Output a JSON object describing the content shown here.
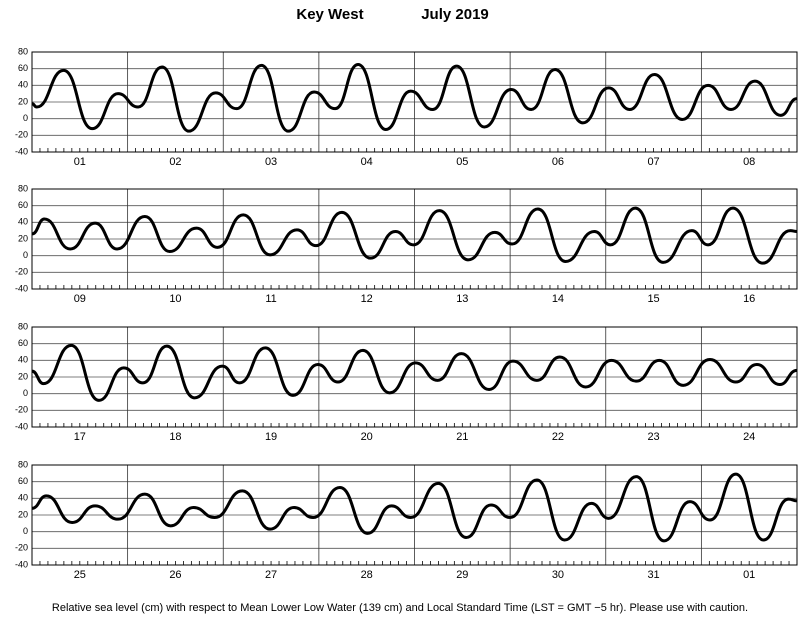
{
  "title": "Key West",
  "subtitle": "July 2019",
  "note": "Relative sea level (cm) with respect to Mean Lower Low Water (139 cm) and Local Standard Time (LST = GMT −5 hr). Please use with caution.",
  "chart_data": [
    {
      "type": "line",
      "categories": [
        "01",
        "02",
        "03",
        "04",
        "05",
        "06",
        "07",
        "08"
      ],
      "xlim": [
        0,
        8
      ],
      "ylim": [
        -40,
        80
      ],
      "yticks": [
        -40,
        -20,
        0,
        20,
        40,
        60,
        80
      ],
      "grid": true,
      "color": "#000000",
      "x": [
        0,
        0.05,
        0.33,
        0.63,
        0.9,
        1.11,
        1.36,
        1.64,
        1.92,
        2.14,
        2.4,
        2.68,
        2.95,
        3.17,
        3.41,
        3.7,
        3.96,
        4.19,
        4.44,
        4.73,
        5.01,
        5.22,
        5.47,
        5.76,
        6.03,
        6.25,
        6.51,
        6.8,
        7.07,
        7.31,
        7.56,
        7.83,
        8
      ],
      "values": [
        18,
        14,
        58,
        -12,
        30,
        14,
        62,
        -15,
        31,
        12,
        64,
        -15,
        32,
        12,
        65,
        -13,
        33,
        11,
        63,
        -10,
        35,
        11,
        59,
        -5,
        37,
        11,
        53,
        -1,
        40,
        11,
        45,
        4,
        24
      ]
    },
    {
      "type": "line",
      "categories": [
        "09",
        "10",
        "11",
        "12",
        "13",
        "14",
        "15",
        "16"
      ],
      "xlim": [
        0,
        8
      ],
      "ylim": [
        -40,
        80
      ],
      "yticks": [
        -40,
        -20,
        0,
        20,
        40,
        60,
        80
      ],
      "grid": true,
      "color": "#000000",
      "x": [
        0,
        0.13,
        0.4,
        0.66,
        0.89,
        1.18,
        1.44,
        1.72,
        1.94,
        2.21,
        2.49,
        2.77,
        2.97,
        3.24,
        3.54,
        3.8,
        3.99,
        4.26,
        4.56,
        4.84,
        5.02,
        5.29,
        5.58,
        5.88,
        6.05,
        6.31,
        6.6,
        6.9,
        7.07,
        7.33,
        7.64,
        7.93,
        8
      ],
      "values": [
        26,
        44,
        8,
        39,
        8,
        47,
        5,
        33,
        10,
        49,
        1,
        31,
        12,
        52,
        -3,
        29,
        13,
        54,
        -5,
        28,
        14,
        56,
        -7,
        29,
        13,
        57,
        -8,
        30,
        13,
        57,
        -9,
        30,
        29
      ]
    },
    {
      "type": "line",
      "categories": [
        "17",
        "18",
        "19",
        "20",
        "21",
        "22",
        "23",
        "24"
      ],
      "xlim": [
        0,
        8
      ],
      "ylim": [
        -40,
        80
      ],
      "yticks": [
        -40,
        -20,
        0,
        20,
        40,
        60,
        80
      ],
      "grid": true,
      "color": "#000000",
      "x": [
        0,
        0.12,
        0.41,
        0.7,
        0.96,
        1.16,
        1.41,
        1.7,
        1.99,
        2.17,
        2.44,
        2.73,
        2.99,
        3.2,
        3.46,
        3.74,
        4.01,
        4.24,
        4.49,
        4.78,
        5.03,
        5.28,
        5.52,
        5.79,
        6.06,
        6.32,
        6.56,
        6.81,
        7.09,
        7.36,
        7.58,
        7.82,
        8
      ],
      "values": [
        27,
        12,
        58,
        -8,
        31,
        13,
        57,
        -5,
        33,
        13,
        55,
        -2,
        35,
        14,
        52,
        1,
        37,
        16,
        48,
        5,
        39,
        16,
        44,
        8,
        40,
        15,
        40,
        10,
        41,
        14,
        35,
        11,
        28
      ]
    },
    {
      "type": "line",
      "categories": [
        "25",
        "26",
        "27",
        "28",
        "29",
        "30",
        "31",
        "01"
      ],
      "xlim": [
        0,
        8
      ],
      "ylim": [
        -40,
        80
      ],
      "yticks": [
        -40,
        -20,
        0,
        20,
        40,
        60,
        80
      ],
      "grid": true,
      "color": "#000000",
      "x": [
        0,
        0.15,
        0.42,
        0.66,
        0.9,
        1.18,
        1.45,
        1.69,
        1.91,
        2.2,
        2.49,
        2.74,
        2.94,
        3.22,
        3.51,
        3.76,
        3.96,
        4.25,
        4.54,
        4.8,
        5,
        5.28,
        5.57,
        5.85,
        6.03,
        6.32,
        6.61,
        6.88,
        7.09,
        7.36,
        7.65,
        7.91,
        8
      ],
      "values": [
        28,
        43,
        11,
        31,
        15,
        45,
        7,
        29,
        17,
        49,
        3,
        29,
        17,
        53,
        -2,
        31,
        17,
        58,
        -7,
        32,
        17,
        62,
        -10,
        34,
        16,
        66,
        -11,
        36,
        14,
        69,
        -10,
        39,
        37
      ]
    }
  ]
}
